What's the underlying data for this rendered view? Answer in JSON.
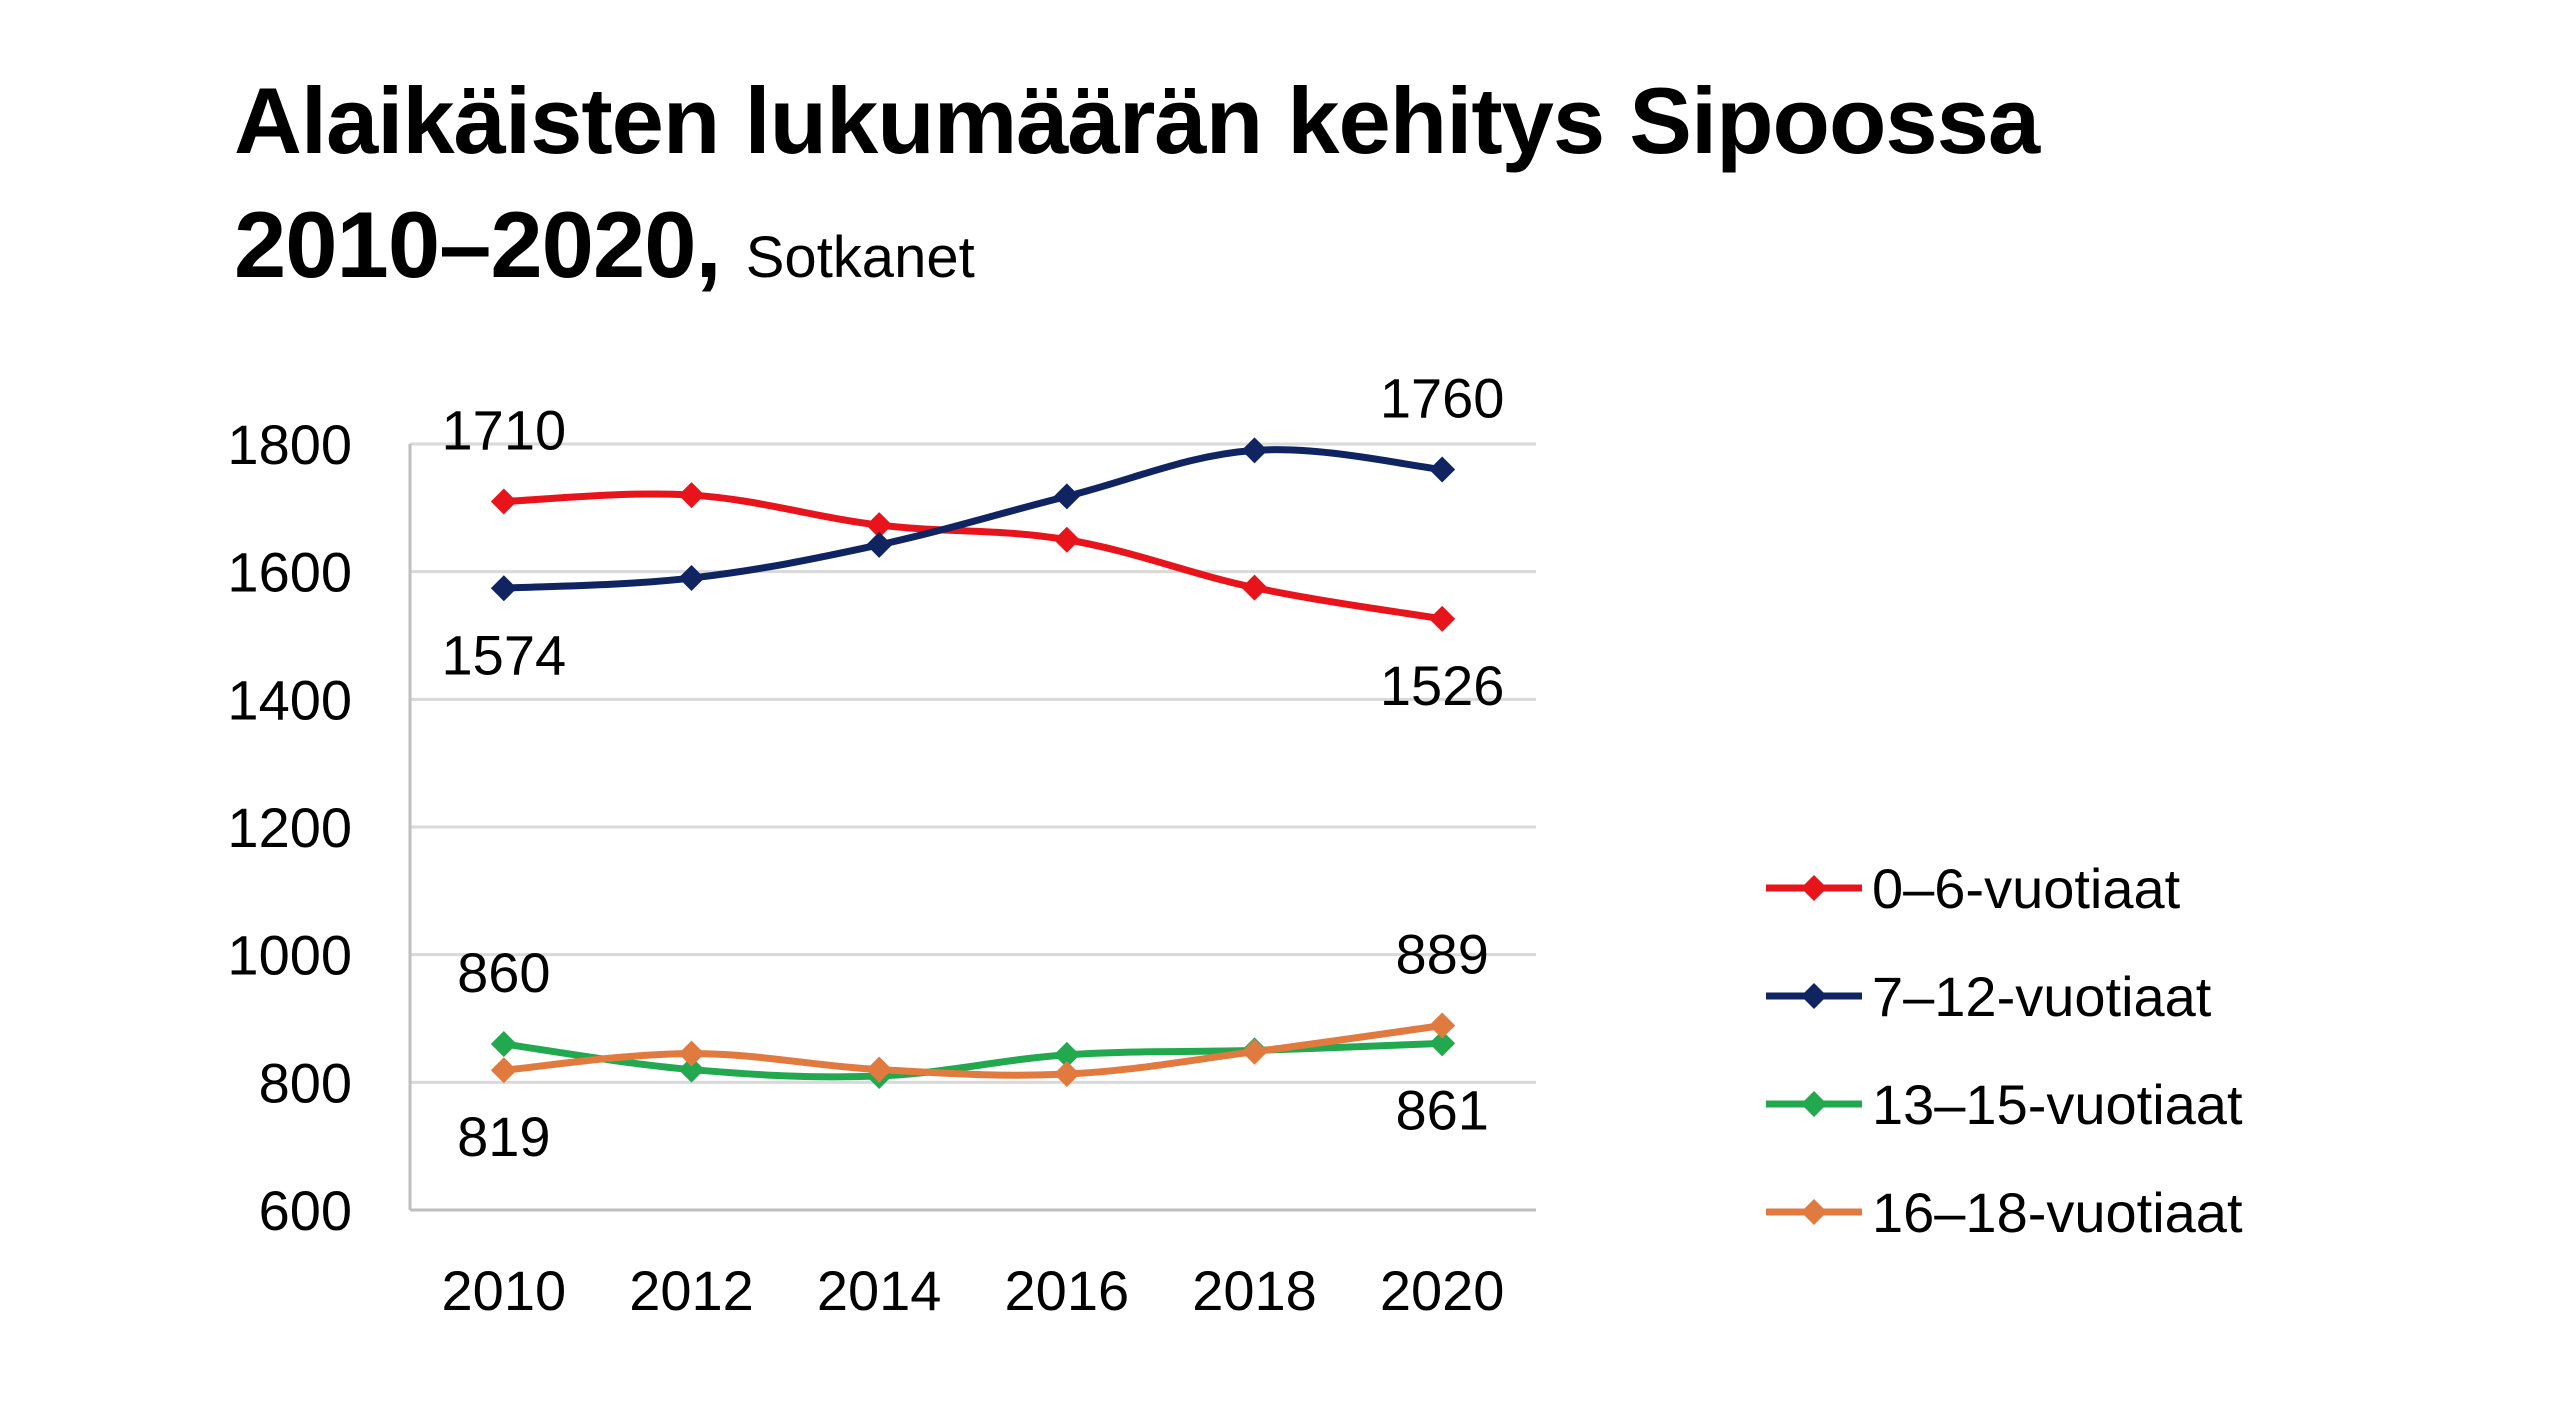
{
  "title": {
    "line1": "Alaikäisten lukumäärän kehitys Sipoossa",
    "line2": "2010–2020,",
    "source": "Sotkanet"
  },
  "chart_data": {
    "type": "line",
    "x": [
      "2010",
      "2012",
      "2014",
      "2016",
      "2018",
      "2020"
    ],
    "ylim": [
      600,
      1800
    ],
    "yticks": [
      600,
      800,
      1000,
      1200,
      1400,
      1600,
      1800
    ],
    "grid": true,
    "legend": "right",
    "series": [
      {
        "name": "0–6-vuotiaat",
        "color": "#e8141b",
        "values": [
          1710,
          1720,
          1673,
          1650,
          1575,
          1526
        ]
      },
      {
        "name": "7–12-vuotiaat",
        "color": "#0f2461",
        "values": [
          1574,
          1590,
          1642,
          1718,
          1790,
          1760
        ]
      },
      {
        "name": "13–15-vuotiaat",
        "color": "#22a94f",
        "values": [
          860,
          820,
          810,
          843,
          850,
          861
        ]
      },
      {
        "name": "16–18-vuotiaat",
        "color": "#e07a3e",
        "values": [
          819,
          845,
          820,
          813,
          848,
          889
        ]
      }
    ],
    "annotations": [
      {
        "text": "1710",
        "series": 0,
        "point": 0,
        "pos": "above"
      },
      {
        "text": "1526",
        "series": 0,
        "point": 5,
        "pos": "below"
      },
      {
        "text": "1574",
        "series": 1,
        "point": 0,
        "pos": "below"
      },
      {
        "text": "1760",
        "series": 1,
        "point": 5,
        "pos": "above"
      },
      {
        "text": "860",
        "series": 2,
        "point": 0,
        "pos": "above"
      },
      {
        "text": "861",
        "series": 2,
        "point": 5,
        "pos": "below"
      },
      {
        "text": "819",
        "series": 3,
        "point": 0,
        "pos": "below"
      },
      {
        "text": "889",
        "series": 3,
        "point": 5,
        "pos": "above"
      }
    ]
  }
}
